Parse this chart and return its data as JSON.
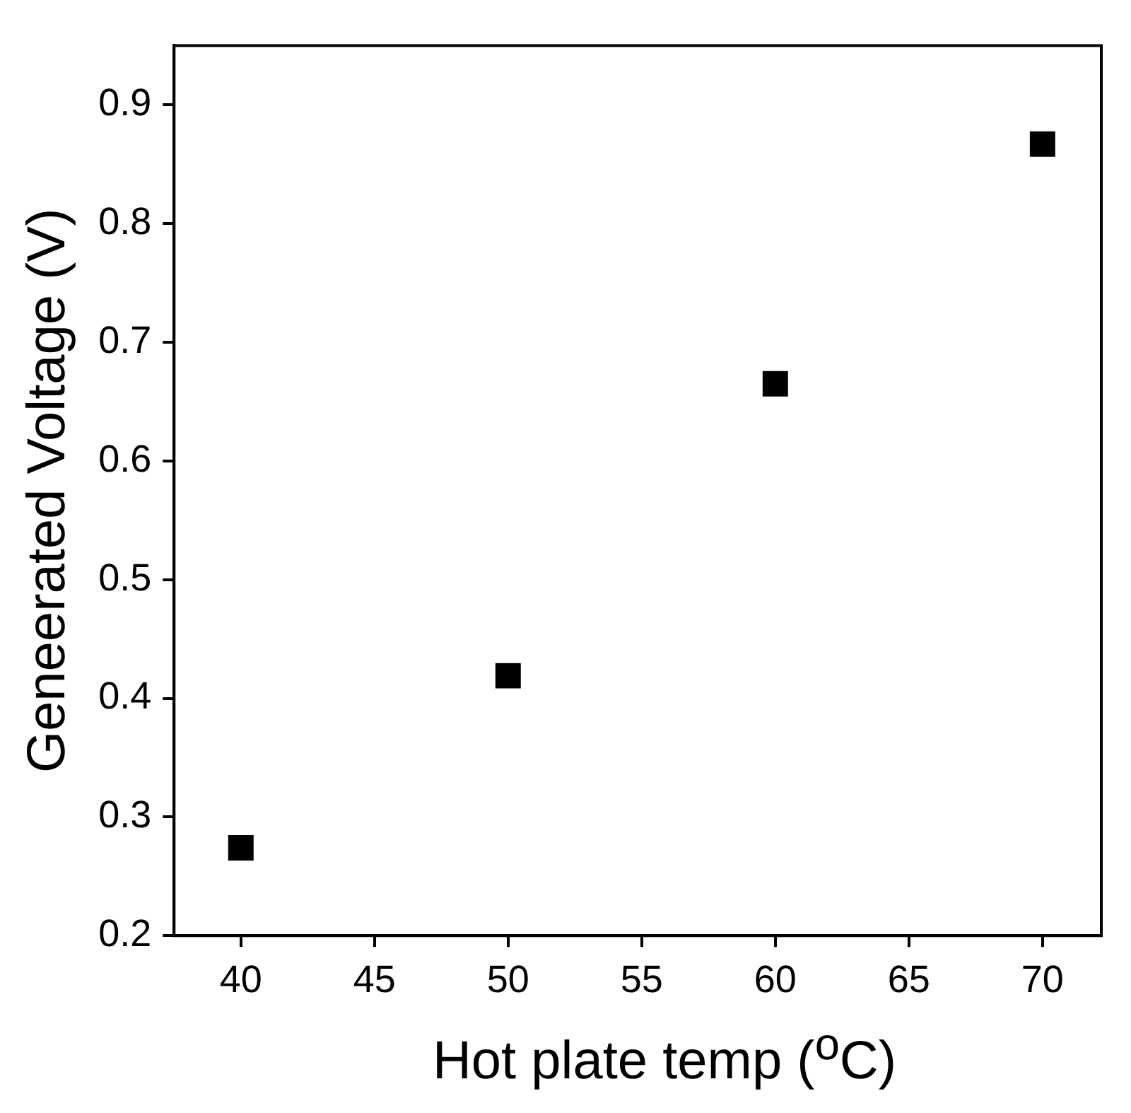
{
  "chart_data": {
    "type": "scatter",
    "xlabel": "Hot plate temp ($^{o}$C)",
    "ylabel": "Geneerated Voltage (V)",
    "x": [
      40,
      50,
      60,
      70
    ],
    "series": [
      {
        "color": "#000000",
        "values": [
          0.274,
          0.419,
          0.665,
          0.867
        ]
      }
    ],
    "xlim": [
      37.5,
      72.2
    ],
    "xticks": [
      40,
      45,
      50,
      55,
      60,
      65,
      70
    ],
    "ylim": [
      0.2,
      0.95
    ],
    "yticks": [
      0.2,
      0.3,
      0.4,
      0.5,
      0.6,
      0.7,
      0.8,
      0.9
    ],
    "grid": false,
    "legend": false,
    "marker": "square"
  }
}
